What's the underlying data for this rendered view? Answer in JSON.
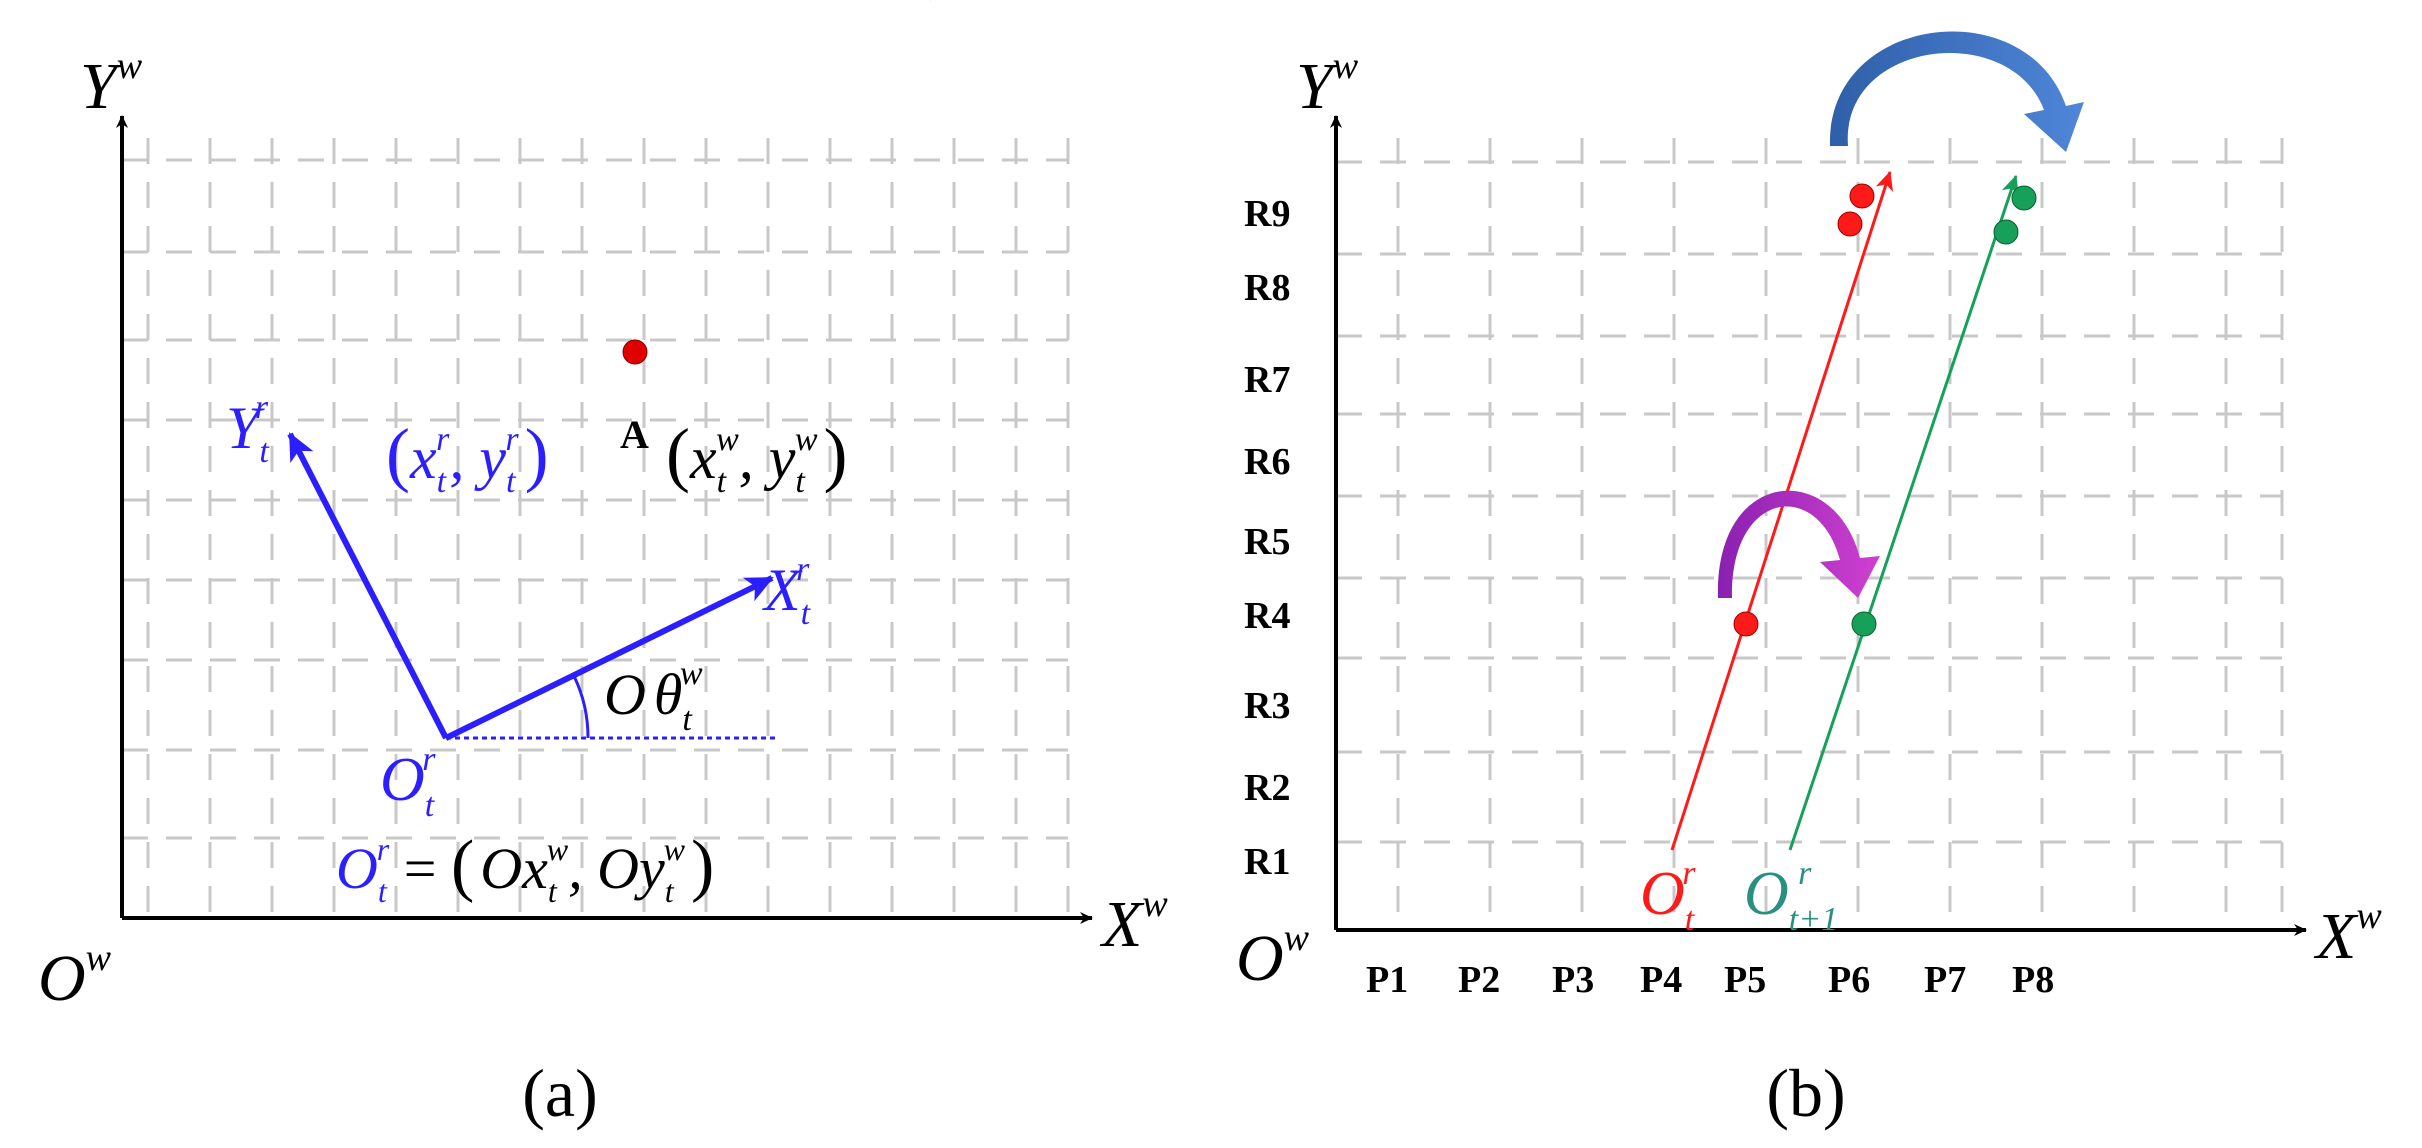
{
  "panel_a": {
    "caption": "(a)",
    "world_axes": {
      "y": "Y",
      "y_sup": "w",
      "x": "X",
      "x_sup": "w",
      "origin": "O",
      "origin_sup": "w"
    },
    "robot_axes": {
      "y": "Y",
      "y_sub": "t",
      "y_sup": "r",
      "x": "X",
      "x_sub": "t",
      "x_sup": "r"
    },
    "robot_origin": {
      "base": "O",
      "sub": "t",
      "sup": "r"
    },
    "angle": {
      "prefix": "O",
      "symbol": "θ",
      "sub": "t",
      "sup": "w"
    },
    "point_label": "A",
    "robot_coords": {
      "lparen": "(",
      "x": "x",
      "x_sub": "t",
      "x_sup": "r",
      "comma": ", ",
      "y": "y",
      "y_sub": "t",
      "y_sup": "r",
      "rparen": ")"
    },
    "world_coords": {
      "lparen": "(",
      "x": "x",
      "x_sub": "t",
      "x_sup": "w",
      "comma": ", ",
      "y": "y",
      "y_sub": "t",
      "y_sup": "w",
      "rparen": ")"
    },
    "origin_equation": {
      "lhs": "O",
      "lhs_sub": "t",
      "lhs_sup": "r",
      "eq": " = ",
      "lparen": "(",
      "ox": "Ox",
      "ox_sub": "t",
      "ox_sup": "w",
      "comma": ", ",
      "oy": "Oy",
      "oy_sub": "t",
      "oy_sup": "w",
      "rparen": ")"
    },
    "colors": {
      "robot": "#2b1fff",
      "point": "#e00000",
      "axis": "#000000",
      "grid": "#c8c8c8"
    }
  },
  "panel_b": {
    "caption": "(b)",
    "world_axes": {
      "y": "Y",
      "y_sup": "w",
      "x": "X",
      "x_sup": "w",
      "origin": "O",
      "origin_sup": "w"
    },
    "row_labels": [
      "R1",
      "R2",
      "R3",
      "R4",
      "R5",
      "R6",
      "R7",
      "R8",
      "R9"
    ],
    "column_labels": [
      "P1",
      "P2",
      "P3",
      "P4",
      "P5",
      "P6",
      "P7",
      "P8"
    ],
    "origin_t": {
      "base": "O",
      "sub": "t",
      "sup": "r"
    },
    "origin_t1": {
      "base": "O",
      "sub": "t+1",
      "sup": "r"
    },
    "colors": {
      "red": "#ff1a1a",
      "green": "#16a05a",
      "origin_t1_text": "#2a8f80",
      "purple": "#b030c0",
      "blue": "#3a6fc0"
    }
  }
}
